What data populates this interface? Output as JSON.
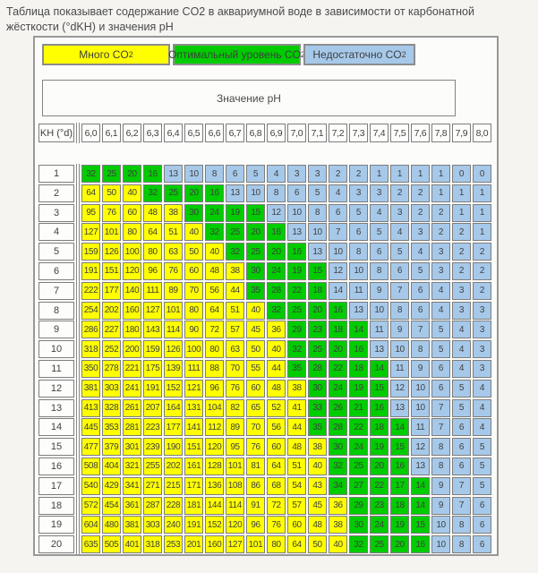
{
  "page": {
    "title": "Таблица показывает содержание CO2 в аквариумной воде в зависимости от карбонатной жёсткости (°dKH) и значения pH"
  },
  "legend": {
    "items": [
      {
        "text": "Много CO",
        "sub": "2",
        "color": "#ffff00",
        "zone": "Y"
      },
      {
        "text": "Оптимальный уровень CO",
        "sub": "2",
        "color": "#00cc00",
        "zone": "G"
      },
      {
        "text": "Недостаточно CO",
        "sub": "2",
        "color": "#a6c9ea",
        "zone": "B"
      }
    ]
  },
  "chart_data": {
    "type": "heatmap",
    "title": "Значение pH",
    "corner_label": "KH (°d)",
    "xlabel": "Значение pH",
    "ylabel": "KH (°d)",
    "columns": [
      "6,0",
      "6,1",
      "6,2",
      "6,3",
      "6,4",
      "6,5",
      "6,6",
      "6,7",
      "6,8",
      "6,9",
      "7,0",
      "7,1",
      "7,2",
      "7,3",
      "7,4",
      "7,5",
      "7,6",
      "7,8",
      "7,9",
      "8,0"
    ],
    "row_labels": [
      "1",
      "2",
      "3",
      "4",
      "5",
      "6",
      "7",
      "8",
      "9",
      "10",
      "11",
      "12",
      "13",
      "14",
      "15",
      "16",
      "17",
      "18",
      "19",
      "20"
    ],
    "matrix": [
      [
        32,
        25,
        20,
        16,
        13,
        10,
        8,
        6,
        5,
        4,
        3,
        3,
        2,
        2,
        1,
        1,
        1,
        1,
        0,
        0
      ],
      [
        64,
        50,
        40,
        32,
        25,
        20,
        16,
        13,
        10,
        8,
        6,
        5,
        4,
        3,
        3,
        2,
        2,
        1,
        1,
        1
      ],
      [
        95,
        76,
        60,
        48,
        38,
        30,
        24,
        19,
        15,
        12,
        10,
        8,
        6,
        5,
        4,
        3,
        2,
        2,
        1,
        1
      ],
      [
        127,
        101,
        80,
        64,
        51,
        40,
        32,
        25,
        20,
        16,
        13,
        10,
        7,
        6,
        5,
        4,
        3,
        2,
        2,
        1
      ],
      [
        159,
        126,
        100,
        80,
        63,
        50,
        40,
        32,
        25,
        20,
        16,
        13,
        10,
        8,
        6,
        5,
        4,
        3,
        2,
        2
      ],
      [
        191,
        151,
        120,
        96,
        76,
        60,
        48,
        38,
        30,
        24,
        19,
        15,
        12,
        10,
        8,
        6,
        5,
        3,
        2,
        2
      ],
      [
        222,
        177,
        140,
        111,
        89,
        70,
        56,
        44,
        35,
        28,
        22,
        18,
        14,
        11,
        9,
        7,
        6,
        4,
        3,
        2
      ],
      [
        254,
        202,
        160,
        127,
        101,
        80,
        64,
        51,
        40,
        32,
        25,
        20,
        16,
        13,
        10,
        8,
        6,
        4,
        3,
        3
      ],
      [
        286,
        227,
        180,
        143,
        114,
        90,
        72,
        57,
        45,
        36,
        29,
        23,
        18,
        14,
        11,
        9,
        7,
        5,
        4,
        3
      ],
      [
        318,
        252,
        200,
        159,
        126,
        100,
        80,
        63,
        50,
        40,
        32,
        25,
        20,
        16,
        13,
        10,
        8,
        5,
        4,
        3
      ],
      [
        350,
        278,
        221,
        175,
        139,
        111,
        88,
        70,
        55,
        44,
        35,
        28,
        22,
        18,
        14,
        11,
        9,
        6,
        4,
        3
      ],
      [
        381,
        303,
        241,
        191,
        152,
        121,
        96,
        76,
        60,
        48,
        38,
        30,
        24,
        19,
        15,
        12,
        10,
        6,
        5,
        4
      ],
      [
        413,
        328,
        261,
        207,
        164,
        131,
        104,
        82,
        65,
        52,
        41,
        33,
        26,
        21,
        16,
        13,
        10,
        7,
        5,
        4
      ],
      [
        445,
        353,
        281,
        223,
        177,
        141,
        112,
        89,
        70,
        56,
        44,
        35,
        28,
        22,
        18,
        14,
        11,
        7,
        6,
        4
      ],
      [
        477,
        379,
        301,
        239,
        190,
        151,
        120,
        95,
        76,
        60,
        48,
        38,
        30,
        24,
        19,
        15,
        12,
        8,
        6,
        5
      ],
      [
        508,
        404,
        321,
        255,
        202,
        161,
        128,
        101,
        81,
        64,
        51,
        40,
        32,
        25,
        20,
        16,
        13,
        8,
        6,
        5
      ],
      [
        540,
        429,
        341,
        271,
        215,
        171,
        136,
        108,
        86,
        68,
        54,
        43,
        34,
        27,
        22,
        17,
        14,
        9,
        7,
        5
      ],
      [
        572,
        454,
        361,
        287,
        228,
        181,
        144,
        114,
        91,
        72,
        57,
        45,
        36,
        29,
        23,
        18,
        14,
        9,
        7,
        6
      ],
      [
        604,
        480,
        381,
        303,
        240,
        191,
        152,
        120,
        96,
        76,
        60,
        48,
        38,
        30,
        24,
        19,
        15,
        10,
        8,
        6
      ],
      [
        635,
        505,
        401,
        318,
        253,
        201,
        160,
        127,
        101,
        80,
        64,
        50,
        40,
        32,
        25,
        20,
        16,
        10,
        8,
        6
      ]
    ],
    "fills": [
      "GGGGBBBBBBBBBBBBBBBB",
      "YYYGGGGBBBBBBBBBBBBB",
      "YYYYYGGGGBBBBBBBBBBB",
      "YYYYYYGGGGBBBBBBBBBB",
      "YYYYYYYGGGGBBBBBBBBB",
      "YYYYYYYYGGGGBBBBBBBB",
      "YYYYYYYYGGGGBBBBBBBB",
      "YYYYYYYYYGGGGBBBBBBB",
      "YYYYYYYYYYGGGGBBBBBB",
      "YYYYYYYYYYGGGGBBBBBB",
      "YYYYYYYYYYGGGGGBBBBB",
      "YYYYYYYYYYYGGGGBBBBB",
      "YYYYYYYYYYYGGGGBBBBB",
      "YYYYYYYYYYYGGGGGBBBB",
      "YYYYYYYYYYYYGGGGBBBB",
      "YYYYYYYYYYYYGGGGBBBB",
      "YYYYYYYYYYYYGGGGGBBB",
      "YYYYYYYYYYYYYGGGGBBB",
      "YYYYYYYYYYYYYGGGGBBB",
      "YYYYYYYYYYYYYGGGGBBB"
    ],
    "zone_colors": {
      "Y": "#ffff00",
      "G": "#00cc00",
      "B": "#a6c9ea"
    },
    "zone_meaning": {
      "Y": "Много CO2",
      "G": "Оптимальный уровень CO2",
      "B": "Недостаточно CO2"
    },
    "legend_position": "top"
  }
}
